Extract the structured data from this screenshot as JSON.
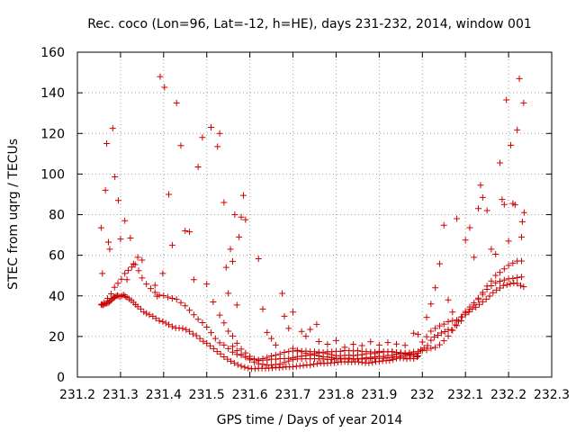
{
  "chart_data": {
    "type": "scatter",
    "title": "Rec. coco (Lon=96, Lat=-12, h=HE), days 231-232, 2014, window 001",
    "xlabel": "GPS time / Days of year 2014",
    "ylabel": "STEC from uqrg / TECUs",
    "xlim": [
      231.2,
      232.3
    ],
    "ylim": [
      0,
      160
    ],
    "xticks": [
      "231.2",
      "231.3",
      "231.4",
      "231.5",
      "231.6",
      "231.7",
      "231.8",
      "231.9",
      "232",
      "232.1",
      "232.2",
      "232.3"
    ],
    "yticks": [
      "0",
      "20",
      "40",
      "60",
      "80",
      "100",
      "120",
      "140",
      "160"
    ],
    "grid": true,
    "marker": "plus",
    "color": "#cc0000",
    "series": [
      {
        "x": [
          231.255,
          231.257,
          231.259,
          231.262,
          231.265,
          231.268,
          231.271,
          231.274,
          231.277,
          231.279,
          231.282,
          231.285,
          231.287,
          231.29,
          231.293,
          231.296,
          231.3,
          231.304,
          231.308,
          231.311,
          231.315,
          231.32,
          231.325,
          231.33,
          231.335,
          231.34,
          231.347,
          231.354,
          231.36,
          231.367,
          231.375,
          231.382,
          231.39,
          231.398,
          231.405,
          231.412,
          231.42,
          231.428,
          231.436,
          231.444,
          231.452,
          231.46,
          231.468,
          231.476,
          231.484,
          231.492,
          231.5,
          231.508,
          231.516,
          231.524,
          231.532,
          231.54,
          231.548,
          231.556,
          231.564,
          231.572,
          231.58,
          231.588,
          231.596,
          231.604,
          231.612,
          231.62,
          231.628,
          231.636,
          231.644,
          231.652,
          231.66,
          231.668,
          231.676,
          231.684,
          231.692,
          231.7,
          231.708,
          231.716,
          231.724,
          231.732,
          231.74,
          231.748,
          231.756,
          231.764,
          231.772,
          231.78,
          231.788,
          231.796,
          231.804,
          231.812,
          231.82,
          231.828,
          231.836,
          231.844,
          231.852,
          231.86,
          231.868,
          231.876,
          231.884,
          231.892,
          231.9,
          231.908,
          231.916,
          231.924,
          231.932,
          231.94,
          231.948,
          231.956,
          231.964,
          231.972,
          231.98,
          231.988,
          231.996,
          232.004,
          232.012,
          232.02,
          232.028,
          232.036,
          232.044,
          232.052,
          232.06,
          232.068,
          232.076,
          232.084,
          232.092,
          232.1,
          232.108,
          232.116,
          232.124,
          232.132,
          232.14,
          232.148,
          232.156,
          232.164,
          232.172,
          232.18,
          232.188,
          232.196,
          232.204,
          232.212,
          232.22,
          232.228,
          232.235
        ],
        "y": [
          35.6,
          35.9,
          35.4,
          35.9,
          36.2,
          36.4,
          36.5,
          36.9,
          37.5,
          38.1,
          38.8,
          39.2,
          39.4,
          39.9,
          40.2,
          39.7,
          39.6,
          40.1,
          40.5,
          39.7,
          39.2,
          38.5,
          37.8,
          36.8,
          35.7,
          34.7,
          33.6,
          32.1,
          31.4,
          30.7,
          29.9,
          28.9,
          27.8,
          27.3,
          26.6,
          25.8,
          24.9,
          24.2,
          24.1,
          24.0,
          23.4,
          22.5,
          21.3,
          20.4,
          19.0,
          17.6,
          16.7,
          15.4,
          14.0,
          12.6,
          11.4,
          10.0,
          8.8,
          7.8,
          6.9,
          6.1,
          5.4,
          4.9,
          4.4,
          4.1,
          4.1,
          4.3,
          4.3,
          4.3,
          4.4,
          4.5,
          4.8,
          4.6,
          4.8,
          5.1,
          5.0,
          5.1,
          5.3,
          5.5,
          5.7,
          6.0,
          5.9,
          6.3,
          6.6,
          6.9,
          6.7,
          6.8,
          7.0,
          7.1,
          7.3,
          7.5,
          7.6,
          7.4,
          7.4,
          7.6,
          7.5,
          7.2,
          7.0,
          6.9,
          7.2,
          7.6,
          7.7,
          8.0,
          8.1,
          8.2,
          8.6,
          9.2,
          9.4,
          9.3,
          9.0,
          9.2,
          9.1,
          10.0,
          13.4,
          14.3,
          15.5,
          18.1,
          19.7,
          20.6,
          21.7,
          22.4,
          23.4,
          23.2,
          25.7,
          27.5,
          29.7,
          31.6,
          32.1,
          33.6,
          34.4,
          35.8,
          37.1,
          38.4,
          39.9,
          41.6,
          42.8,
          43.9,
          45.1,
          45.4,
          46.0,
          46.3,
          46.1,
          45.1,
          44.5
        ]
      },
      {
        "x": [
          231.262,
          231.27,
          231.278,
          231.286,
          231.294,
          231.302,
          231.31,
          231.318,
          231.326,
          231.334,
          231.342,
          231.35,
          231.36,
          231.37,
          231.38,
          231.39,
          231.4,
          231.41,
          231.42,
          231.43,
          231.44,
          231.45,
          231.46,
          231.47,
          231.48,
          231.49,
          231.5,
          231.51,
          231.52,
          231.53,
          231.54,
          231.55,
          231.56,
          231.57,
          231.58,
          231.59,
          231.6,
          231.61,
          231.62,
          231.63,
          231.64,
          231.65,
          231.66,
          231.67,
          231.68,
          231.69,
          231.7,
          231.71,
          231.72,
          231.73,
          231.74,
          231.75,
          231.76,
          231.77,
          231.78,
          231.79,
          231.8,
          231.81,
          231.82,
          231.83,
          231.84,
          231.85,
          231.86,
          231.87,
          231.88,
          231.89,
          231.9,
          231.91,
          231.92,
          231.93,
          231.94,
          231.95,
          231.96,
          231.97,
          231.98,
          231.99,
          232.0,
          232.01,
          232.02,
          232.03,
          232.04,
          232.05,
          232.06,
          232.07,
          232.08,
          232.09,
          232.1,
          232.11,
          232.12,
          232.13,
          232.14,
          232.15,
          232.16,
          232.17,
          232.18,
          232.19,
          232.2,
          232.21,
          232.22,
          232.23
        ],
        "y": [
          36.5,
          38.7,
          41.0,
          44.2,
          46.2,
          48.2,
          51.0,
          52.6,
          54.2,
          55.4,
          52.4,
          48.8,
          45.8,
          43.6,
          41.7,
          40.4,
          40.1,
          39.4,
          38.8,
          38.3,
          36.7,
          35.1,
          32.9,
          30.7,
          28.5,
          26.8,
          24.6,
          21.9,
          19.0,
          16.9,
          15.8,
          14.0,
          12.3,
          11.2,
          10.8,
          9.9,
          9.1,
          8.8,
          8.5,
          9.1,
          9.7,
          10.4,
          10.8,
          11.4,
          12.2,
          12.6,
          12.8,
          12.9,
          12.8,
          12.8,
          12.6,
          12.5,
          12.3,
          12.0,
          11.5,
          11.0,
          10.5,
          10.5,
          10.7,
          10.8,
          10.6,
          10.9,
          11.0,
          11.5,
          11.6,
          11.6,
          12.1,
          12.4,
          12.4,
          12.6,
          12.1,
          11.9,
          11.3,
          11.1,
          10.2,
          10.4,
          17.3,
          19.9,
          22.6,
          24.0,
          25.2,
          26.1,
          27.3,
          27.8,
          28.1,
          29.6,
          32.3,
          34.5,
          36.6,
          38.9,
          41.7,
          44.8,
          47.3,
          50.1,
          51.5,
          53.3,
          55.0,
          56.1,
          57.1,
          57.2
        ]
      },
      {
        "x": [
          231.53,
          231.54,
          231.55,
          231.56,
          231.57,
          231.58,
          231.59,
          231.6,
          231.61,
          231.62,
          231.63,
          231.64,
          231.65,
          231.66,
          231.67,
          231.68,
          231.69,
          231.7,
          231.71,
          231.72,
          231.73,
          231.74,
          231.75,
          231.76,
          231.77,
          231.78,
          231.79,
          231.8,
          231.81,
          231.82,
          231.83,
          231.84,
          231.85,
          231.86,
          231.87,
          231.88,
          231.89,
          231.9,
          231.91,
          231.92,
          231.93,
          231.94,
          231.95,
          231.96,
          231.97,
          231.98
        ],
        "y": [
          30.5,
          26.7,
          22.6,
          20.2,
          16.7,
          13.8,
          11.9,
          10.2,
          9.0,
          8.1,
          8.3,
          8.4,
          8.8,
          8.8,
          9.1,
          9.1,
          9.2,
          9.6,
          10.1,
          10.3,
          10.6,
          11.0,
          11.6,
          11.9,
          12.1,
          12.5,
          12.5,
          12.7,
          12.7,
          13.1,
          13.0,
          12.9,
          13.0,
          12.7,
          12.6,
          12.4,
          12.3,
          12.7,
          12.5,
          12.5,
          12.4,
          12.2,
          12.0,
          11.8,
          11.5,
          11.2
        ]
      },
      {
        "x": [
          231.56,
          231.57,
          231.58,
          231.59,
          231.6,
          231.61,
          231.62,
          231.63,
          231.64,
          231.65,
          231.66,
          231.67,
          231.68,
          231.69,
          231.7,
          231.71,
          231.72,
          231.73,
          231.74,
          231.75,
          231.76,
          231.77,
          231.78,
          231.79,
          231.8,
          231.81,
          231.82,
          231.83,
          231.84,
          231.85,
          231.86,
          231.87,
          231.88,
          231.89,
          231.9,
          231.91,
          231.92,
          231.93,
          231.94,
          231.95,
          231.96,
          231.97,
          231.98,
          231.99,
          232.0,
          232.01,
          232.02,
          232.03,
          232.04,
          232.05,
          232.06,
          232.07,
          232.08,
          232.09,
          232.1,
          232.11,
          232.12,
          232.13,
          232.14,
          232.15,
          232.16,
          232.17,
          232.18,
          232.19,
          232.2,
          232.21,
          232.22,
          232.23
        ],
        "y": [
          15.1,
          13.0,
          11.1,
          9.8,
          8.5,
          7.4,
          6.6,
          6.3,
          6.0,
          6.0,
          6.2,
          6.5,
          7.2,
          7.9,
          8.6,
          8.9,
          9.0,
          9.1,
          9.0,
          9.1,
          9.0,
          9.0,
          8.7,
          8.7,
          9.1,
          9.0,
          8.9,
          9.3,
          9.1,
          9.1,
          9.2,
          9.6,
          9.7,
          9.9,
          10.2,
          10.1,
          10.7,
          10.7,
          11.3,
          11.7,
          11.8,
          12.0,
          12.4,
          12.6,
          13.0,
          13.3,
          14.2,
          14.6,
          15.9,
          17.9,
          20.2,
          23.0,
          25.4,
          27.7,
          30.7,
          33.4,
          35.5,
          38.2,
          40.8,
          43.2,
          45.0,
          46.4,
          47.2,
          47.8,
          48.4,
          48.6,
          49.0,
          49.3
        ]
      },
      {
        "x": [
          231.7,
          231.71,
          231.72,
          231.73,
          231.74,
          231.75,
          231.76,
          231.77,
          231.78,
          231.79,
          231.8,
          231.81,
          231.82,
          231.83,
          231.84,
          231.85,
          231.86,
          231.87,
          231.88,
          231.89,
          231.9,
          231.91,
          231.92,
          231.93,
          231.94,
          231.95,
          231.96,
          231.97,
          231.98,
          231.99
        ],
        "y": [
          14.1,
          13.2,
          12.5,
          11.7,
          11.0,
          10.8,
          10.4,
          10.0,
          9.9,
          9.6,
          9.3,
          9.3,
          9.2,
          9.0,
          8.9,
          8.9,
          8.9,
          8.9,
          9.1,
          9.2,
          9.2,
          9.3,
          9.5,
          9.8,
          10.1,
          10.3,
          10.6,
          10.9,
          11.3,
          11.8
        ]
      },
      {
        "x": [
          231.255,
          231.258,
          231.265,
          231.268,
          231.272,
          231.275,
          231.282,
          231.287,
          231.295,
          231.3,
          231.31,
          231.315,
          231.323,
          231.33,
          231.34,
          231.35,
          231.38,
          231.385,
          231.392,
          231.398,
          231.402,
          231.412,
          231.42,
          231.43,
          231.44,
          231.45,
          231.46,
          231.47,
          231.48,
          231.49,
          231.5,
          231.51,
          231.515,
          231.525,
          231.53,
          231.54,
          231.545,
          231.55,
          231.555,
          231.56,
          231.565,
          231.57,
          231.575,
          231.58,
          231.585,
          231.59,
          231.62,
          231.63,
          231.64,
          231.65,
          231.66,
          231.675,
          231.68,
          231.69,
          231.7,
          231.72,
          231.73,
          231.74,
          231.755,
          231.76,
          231.78,
          231.8,
          231.82,
          231.84,
          231.86,
          231.88,
          231.9,
          231.92,
          231.94,
          231.96,
          231.98,
          231.99,
          232.01,
          232.02,
          232.03,
          232.04,
          232.05,
          232.06,
          232.07,
          232.08,
          232.1,
          232.11,
          232.12,
          232.13,
          232.135,
          232.14,
          232.15,
          232.16,
          232.17,
          232.18,
          232.185,
          232.19,
          232.195,
          232.2,
          232.205,
          232.21,
          232.215,
          232.22,
          232.225,
          232.23,
          232.232,
          232.235,
          232.236
        ],
        "y": [
          73.5,
          51.0,
          92.0,
          115.0,
          66.5,
          63.0,
          122.5,
          98.6,
          87.0,
          68.0,
          77.0,
          48.0,
          68.5,
          55.8,
          59.0,
          57.6,
          45.2,
          39.8,
          148.0,
          51.0,
          142.7,
          90.0,
          65.0,
          135.0,
          114.0,
          72.0,
          71.5,
          48.0,
          103.5,
          118.0,
          45.8,
          123.0,
          37.0,
          113.5,
          120.0,
          86.0,
          54.0,
          41.3,
          63.0,
          57.0,
          80.0,
          35.5,
          69.0,
          78.8,
          89.5,
          77.5,
          58.3,
          33.5,
          22.0,
          19.0,
          15.8,
          41.2,
          30.0,
          24.0,
          32.0,
          22.5,
          20.1,
          23.5,
          26.0,
          17.5,
          16.2,
          18.0,
          14.7,
          16.1,
          15.5,
          17.4,
          15.8,
          17.0,
          16.3,
          15.6,
          21.6,
          21.0,
          29.4,
          36.0,
          44.0,
          55.8,
          74.8,
          38.0,
          32.0,
          78.0,
          67.5,
          73.6,
          59.0,
          83.0,
          94.5,
          88.5,
          82.0,
          63.0,
          60.5,
          105.5,
          87.5,
          85.0,
          136.5,
          67.0,
          114.2,
          85.5,
          84.8,
          121.7,
          147.0,
          69.0,
          76.5,
          135.0,
          81.0
        ]
      }
    ]
  }
}
